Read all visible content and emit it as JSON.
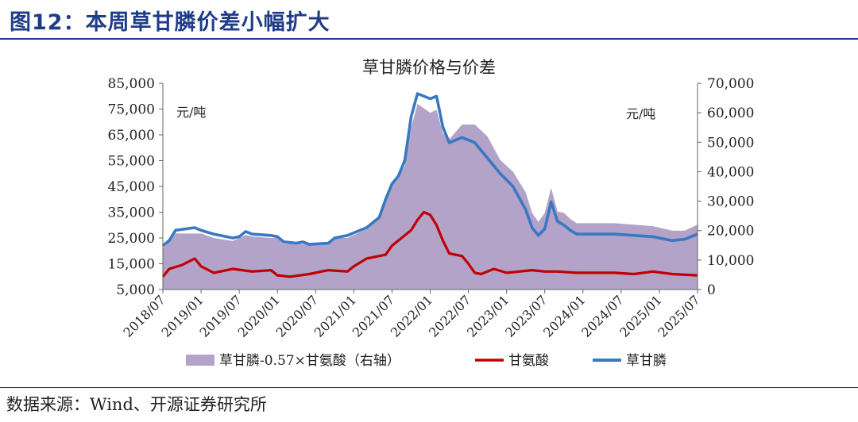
{
  "figure": {
    "title": "图12：本周草甘膦价差小幅扩大",
    "source": "数据来源：Wind、开源证券研究所"
  },
  "chart_data": {
    "type": "line",
    "title": "草甘膦价格与价差",
    "left_axis": {
      "unit": "元/吨",
      "min": 5000,
      "max": 85000,
      "ticks": [
        "85,000",
        "75,000",
        "65,000",
        "55,000",
        "45,000",
        "35,000",
        "25,000",
        "15,000",
        "5,000"
      ]
    },
    "right_axis": {
      "unit": "元/吨",
      "min": 0,
      "max": 70000,
      "ticks": [
        "70,000",
        "60,000",
        "50,000",
        "40,000",
        "30,000",
        "20,000",
        "10,000",
        "0"
      ]
    },
    "x_labels": [
      "2018/07",
      "2019/01",
      "2019/07",
      "2020/01",
      "2020/07",
      "2021/01",
      "2021/07",
      "2022/01",
      "2022/07",
      "2023/01",
      "2023/07",
      "2024/01",
      "2024/07",
      "2025/01",
      "2025/07"
    ],
    "x_range": [
      "2018/07",
      "2025/07"
    ],
    "legend": [
      "草甘膦-0.57×甘氨酸（右轴）",
      "甘氨酸",
      "草甘膦"
    ],
    "colors": {
      "spread": "#b3a3c9",
      "glycine": "#c00000",
      "glyphosate": "#3a78c3"
    },
    "series": [
      {
        "name": "草甘膦",
        "axis": "left",
        "points": [
          [
            "2018/07",
            22000
          ],
          [
            "2018/08",
            24000
          ],
          [
            "2018/09",
            28000
          ],
          [
            "2018/12",
            29000
          ],
          [
            "2019/01",
            28000
          ],
          [
            "2019/03",
            26500
          ],
          [
            "2019/06",
            25000
          ],
          [
            "2019/07",
            25500
          ],
          [
            "2019/08",
            27500
          ],
          [
            "2019/09",
            26500
          ],
          [
            "2019/12",
            26000
          ],
          [
            "2020/01",
            25500
          ],
          [
            "2020/02",
            23500
          ],
          [
            "2020/04",
            23000
          ],
          [
            "2020/05",
            23500
          ],
          [
            "2020/06",
            22500
          ],
          [
            "2020/09",
            23000
          ],
          [
            "2020/10",
            25000
          ],
          [
            "2020/12",
            26000
          ],
          [
            "2021/01",
            27000
          ],
          [
            "2021/03",
            29000
          ],
          [
            "2021/05",
            33000
          ],
          [
            "2021/06",
            40000
          ],
          [
            "2021/07",
            46000
          ],
          [
            "2021/08",
            49000
          ],
          [
            "2021/09",
            55000
          ],
          [
            "2021/10",
            72000
          ],
          [
            "2021/11",
            81000
          ],
          [
            "2022/01",
            79000
          ],
          [
            "2022/02",
            80000
          ],
          [
            "2022/03",
            68000
          ],
          [
            "2022/04",
            62000
          ],
          [
            "2022/06",
            64000
          ],
          [
            "2022/08",
            62000
          ],
          [
            "2022/10",
            56000
          ],
          [
            "2022/12",
            50000
          ],
          [
            "2023/02",
            45000
          ],
          [
            "2023/04",
            36000
          ],
          [
            "2023/05",
            29000
          ],
          [
            "2023/06",
            26000
          ],
          [
            "2023/07",
            28500
          ],
          [
            "2023/08",
            39000
          ],
          [
            "2023/09",
            31500
          ],
          [
            "2023/10",
            30000
          ],
          [
            "2023/11",
            28000
          ],
          [
            "2023/12",
            26500
          ],
          [
            "2024/03",
            26500
          ],
          [
            "2024/06",
            26500
          ],
          [
            "2024/09",
            26000
          ],
          [
            "2024/12",
            25500
          ],
          [
            "2025/03",
            24000
          ],
          [
            "2025/05",
            24500
          ],
          [
            "2025/07",
            26500
          ]
        ]
      },
      {
        "name": "甘氨酸",
        "axis": "left",
        "points": [
          [
            "2018/07",
            10000
          ],
          [
            "2018/08",
            13000
          ],
          [
            "2018/10",
            14500
          ],
          [
            "2018/12",
            17000
          ],
          [
            "2019/01",
            14000
          ],
          [
            "2019/03",
            11500
          ],
          [
            "2019/06",
            13000
          ],
          [
            "2019/09",
            12000
          ],
          [
            "2019/12",
            12500
          ],
          [
            "2020/01",
            10500
          ],
          [
            "2020/03",
            10000
          ],
          [
            "2020/06",
            11000
          ],
          [
            "2020/09",
            12500
          ],
          [
            "2020/12",
            12000
          ],
          [
            "2021/01",
            14000
          ],
          [
            "2021/03",
            17000
          ],
          [
            "2021/06",
            18500
          ],
          [
            "2021/07",
            22000
          ],
          [
            "2021/08",
            24000
          ],
          [
            "2021/09",
            26000
          ],
          [
            "2021/10",
            28000
          ],
          [
            "2021/11",
            32000
          ],
          [
            "2021/12",
            35000
          ],
          [
            "2022/01",
            34000
          ],
          [
            "2022/02",
            30000
          ],
          [
            "2022/03",
            24000
          ],
          [
            "2022/04",
            19000
          ],
          [
            "2022/06",
            18000
          ],
          [
            "2022/07",
            15000
          ],
          [
            "2022/08",
            11500
          ],
          [
            "2022/09",
            11000
          ],
          [
            "2022/11",
            13000
          ],
          [
            "2023/01",
            11500
          ],
          [
            "2023/03",
            12000
          ],
          [
            "2023/05",
            12500
          ],
          [
            "2023/07",
            12000
          ],
          [
            "2023/09",
            12000
          ],
          [
            "2023/12",
            11500
          ],
          [
            "2024/03",
            11500
          ],
          [
            "2024/06",
            11500
          ],
          [
            "2024/09",
            11000
          ],
          [
            "2024/12",
            12000
          ],
          [
            "2025/03",
            11000
          ],
          [
            "2025/07",
            10500
          ]
        ]
      },
      {
        "name": "草甘膦-0.57×甘氨酸（右轴）",
        "axis": "right",
        "points": [
          [
            "2018/07",
            14000
          ],
          [
            "2018/08",
            16000
          ],
          [
            "2018/09",
            19000
          ],
          [
            "2018/12",
            19000
          ],
          [
            "2019/01",
            19000
          ],
          [
            "2019/03",
            17500
          ],
          [
            "2019/06",
            16500
          ],
          [
            "2019/07",
            17500
          ],
          [
            "2019/08",
            18500
          ],
          [
            "2019/09",
            18000
          ],
          [
            "2019/12",
            17500
          ],
          [
            "2020/01",
            17500
          ],
          [
            "2020/02",
            15500
          ],
          [
            "2020/04",
            15500
          ],
          [
            "2020/06",
            15500
          ],
          [
            "2020/09",
            16000
          ],
          [
            "2020/10",
            17500
          ],
          [
            "2020/12",
            17500
          ],
          [
            "2021/01",
            18500
          ],
          [
            "2021/03",
            20500
          ],
          [
            "2021/05",
            24000
          ],
          [
            "2021/06",
            30000
          ],
          [
            "2021/07",
            35000
          ],
          [
            "2021/08",
            38000
          ],
          [
            "2021/09",
            42000
          ],
          [
            "2021/10",
            55000
          ],
          [
            "2021/11",
            63000
          ],
          [
            "2022/01",
            60000
          ],
          [
            "2022/02",
            61000
          ],
          [
            "2022/03",
            53000
          ],
          [
            "2022/04",
            51000
          ],
          [
            "2022/06",
            56000
          ],
          [
            "2022/08",
            56000
          ],
          [
            "2022/10",
            52000
          ],
          [
            "2022/12",
            44000
          ],
          [
            "2023/02",
            40000
          ],
          [
            "2023/04",
            33000
          ],
          [
            "2023/05",
            26000
          ],
          [
            "2023/06",
            23000
          ],
          [
            "2023/07",
            26000
          ],
          [
            "2023/08",
            34500
          ],
          [
            "2023/09",
            26500
          ],
          [
            "2023/10",
            26000
          ],
          [
            "2023/11",
            24000
          ],
          [
            "2023/12",
            22500
          ],
          [
            "2024/03",
            22500
          ],
          [
            "2024/06",
            22500
          ],
          [
            "2024/09",
            22000
          ],
          [
            "2024/12",
            21500
          ],
          [
            "2025/03",
            20000
          ],
          [
            "2025/05",
            20000
          ],
          [
            "2025/07",
            22000
          ]
        ]
      }
    ]
  }
}
